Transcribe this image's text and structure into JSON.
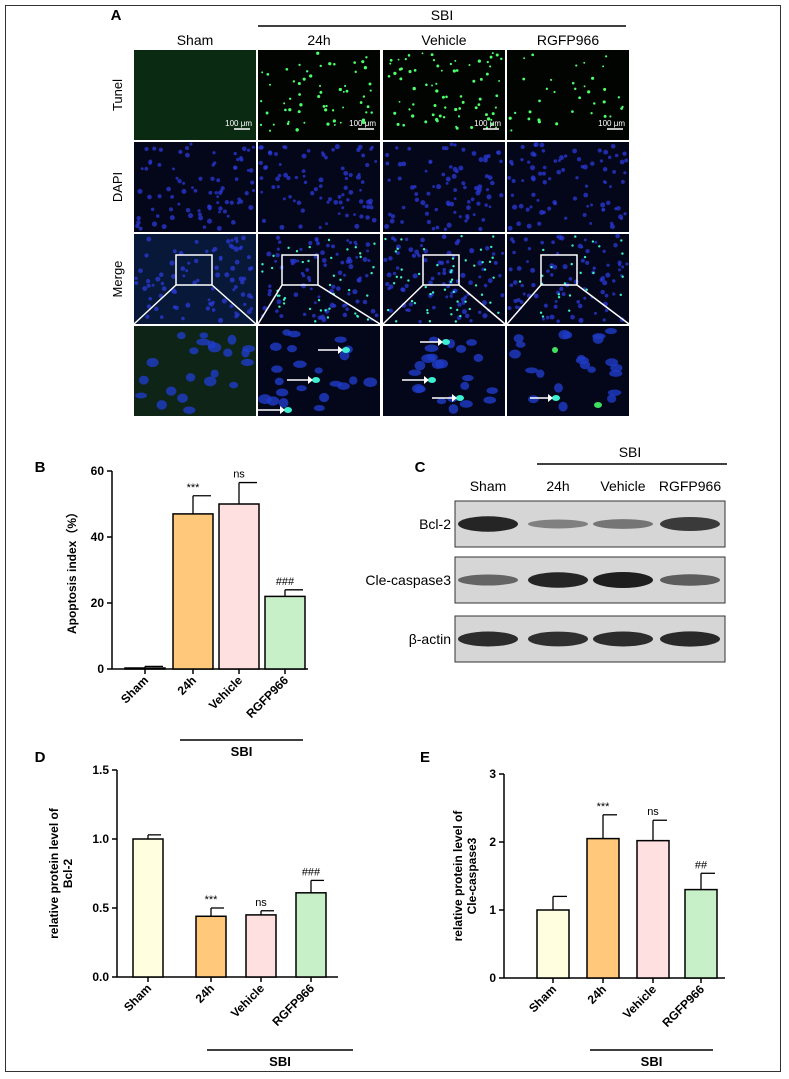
{
  "panel_a": {
    "letter": "A",
    "group_label": "SBI",
    "columns": [
      "Sham",
      "24h",
      "Vehicle",
      "RGFP966"
    ],
    "rows": [
      "Tunel",
      "DAPI",
      "Merge"
    ],
    "scale_bar": "100 μm"
  },
  "panel_b": {
    "letter": "B"
  },
  "panel_c": {
    "letter": "C",
    "group_label": "SBI",
    "columns": [
      "Sham",
      "24h",
      "Vehicle",
      "RGFP966"
    ],
    "rows": [
      "Bcl-2",
      "Cle-caspase3",
      "β-actin"
    ]
  },
  "panel_d": {
    "letter": "D"
  },
  "panel_e": {
    "letter": "E"
  },
  "colors": {
    "sham": "#FFFFE0",
    "h24": "#FFC87A",
    "vehicle": "#FFE0E0",
    "rgfp966": "#C8F0C8"
  },
  "chart_data": [
    {
      "id": "B",
      "type": "bar",
      "categories": [
        "Sham",
        "24h",
        "Vehicle",
        "RGFP966"
      ],
      "values": [
        0.3,
        47,
        50,
        22
      ],
      "errors": [
        0.5,
        5.5,
        6.5,
        2.0
      ],
      "annotations": [
        "",
        "***",
        "ns",
        "###"
      ],
      "ylabel": "Apoptosis index（%）",
      "group_label": "SBI",
      "ylim": [
        0,
        60
      ],
      "yticks": [
        "0",
        "20",
        "40",
        "60"
      ]
    },
    {
      "id": "D",
      "type": "bar",
      "categories": [
        "Sham",
        "24h",
        "Vehicle",
        "RGFP966"
      ],
      "values": [
        1.0,
        0.44,
        0.45,
        0.61
      ],
      "errors": [
        0.03,
        0.06,
        0.03,
        0.09
      ],
      "annotations": [
        "",
        "***",
        "ns",
        "###"
      ],
      "ylabel_lines": [
        "relative protein level of",
        "Bcl-2"
      ],
      "group_label": "SBI",
      "ylim": [
        0,
        1.5
      ],
      "yticks": [
        "0.0",
        "0.5",
        "1.0",
        "1.5"
      ]
    },
    {
      "id": "E",
      "type": "bar",
      "categories": [
        "Sham",
        "24h",
        "Vehicle",
        "RGFP966"
      ],
      "values": [
        1.0,
        2.05,
        2.02,
        1.3
      ],
      "errors": [
        0.2,
        0.35,
        0.3,
        0.24
      ],
      "annotations": [
        "",
        "***",
        "ns",
        "##"
      ],
      "ylabel_lines": [
        "relative protein level of",
        "Cle-caspase3"
      ],
      "group_label": "SBI",
      "ylim": [
        0,
        3
      ],
      "yticks": [
        "0",
        "1",
        "2",
        "3"
      ]
    }
  ]
}
